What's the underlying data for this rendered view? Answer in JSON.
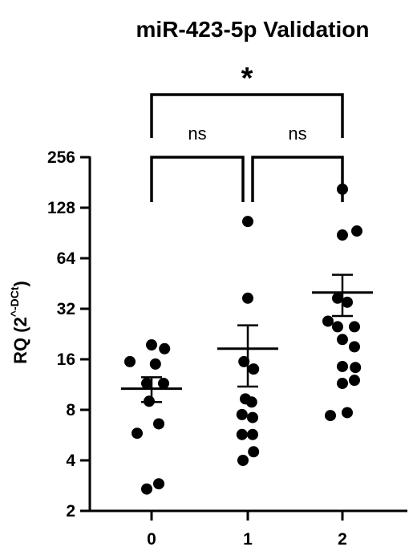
{
  "chart_data": {
    "type": "scatter",
    "title": "miR-423-5p Validation",
    "ylabel": {
      "main": "RQ (2",
      "superscript": "^-DCt",
      "close": ")"
    },
    "yscale": "log2",
    "ylim": [
      2,
      256
    ],
    "yticks": [
      2,
      4,
      8,
      16,
      32,
      64,
      128,
      256
    ],
    "ytick_labels": [
      "2",
      "4",
      "8",
      "16",
      "32",
      "64",
      "128",
      "256"
    ],
    "categories": [
      "0",
      "1",
      "2"
    ],
    "groups": [
      {
        "category": "0",
        "mean": 10.7,
        "sem_low": 8.9,
        "sem_high": 12.5,
        "points": [
          {
            "offset": -0.45,
            "value": 15.5
          },
          {
            "offset": 0.0,
            "value": 19.5
          },
          {
            "offset": 0.27,
            "value": 18.5
          },
          {
            "offset": 0.08,
            "value": 15.0
          },
          {
            "offset": -0.1,
            "value": 11.5
          },
          {
            "offset": 0.25,
            "value": 11.5
          },
          {
            "offset": -0.05,
            "value": 9.0
          },
          {
            "offset": 0.15,
            "value": 6.6
          },
          {
            "offset": -0.3,
            "value": 5.8
          },
          {
            "offset": -0.1,
            "value": 2.7
          },
          {
            "offset": 0.15,
            "value": 2.9
          }
        ]
      },
      {
        "category": "1",
        "mean": 18.5,
        "sem_low": 11.0,
        "sem_high": 25.5,
        "points": [
          {
            "offset": 0.0,
            "value": 106
          },
          {
            "offset": 0.0,
            "value": 37
          },
          {
            "offset": -0.08,
            "value": 15.5
          },
          {
            "offset": 0.12,
            "value": 14.0
          },
          {
            "offset": -0.05,
            "value": 9.3
          },
          {
            "offset": 0.08,
            "value": 8.9
          },
          {
            "offset": -0.12,
            "value": 7.5
          },
          {
            "offset": 0.1,
            "value": 7.2
          },
          {
            "offset": -0.12,
            "value": 5.7
          },
          {
            "offset": 0.1,
            "value": 5.7
          },
          {
            "offset": -0.1,
            "value": 4.0
          },
          {
            "offset": 0.12,
            "value": 4.5
          }
        ]
      },
      {
        "category": "2",
        "mean": 40,
        "sem_low": 29,
        "sem_high": 51,
        "points": [
          {
            "offset": 0.0,
            "value": 165
          },
          {
            "offset": 0.0,
            "value": 88
          },
          {
            "offset": 0.3,
            "value": 93
          },
          {
            "offset": -0.1,
            "value": 37
          },
          {
            "offset": 0.1,
            "value": 35
          },
          {
            "offset": -0.3,
            "value": 27
          },
          {
            "offset": -0.1,
            "value": 25
          },
          {
            "offset": 0.25,
            "value": 25
          },
          {
            "offset": 0.0,
            "value": 21
          },
          {
            "offset": 0.25,
            "value": 19
          },
          {
            "offset": 0.0,
            "value": 14.5
          },
          {
            "offset": 0.27,
            "value": 14.3
          },
          {
            "offset": 0.0,
            "value": 11.5
          },
          {
            "offset": 0.25,
            "value": 12.0
          },
          {
            "offset": -0.25,
            "value": 7.4
          },
          {
            "offset": 0.1,
            "value": 7.7
          }
        ]
      }
    ],
    "significance": [
      {
        "from": "0",
        "to": "1",
        "label": "ns",
        "level": 1
      },
      {
        "from": "1",
        "to": "2",
        "label": "ns",
        "level": 1
      },
      {
        "from": "0",
        "to": "2",
        "label": "*",
        "level": 2
      }
    ],
    "grid": false,
    "legend": "none"
  }
}
